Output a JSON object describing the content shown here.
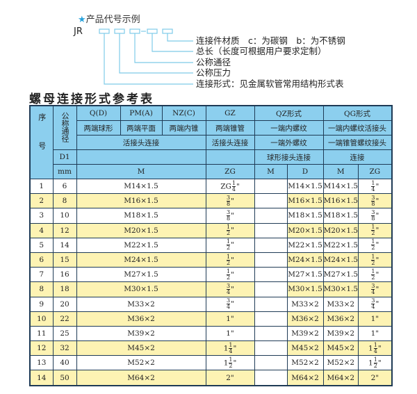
{
  "example": {
    "heading": "产品代号示例",
    "prefix": "JR",
    "dash": "-",
    "labels": [
      "连接件材质　c：为碳钢　b：为不锈钢",
      "总长（长度可根据用户要求定制）",
      "公称通径",
      "公称压力",
      "连接形式：见金属软管常用结构形式表"
    ]
  },
  "title": "螺母连接形式参考表",
  "head": {
    "seq": "序号",
    "dn": "公称通径",
    "d1": "D1",
    "mm": "mm",
    "codes": [
      "Q(D)",
      "PM(A)",
      "NZ(C)",
      "GZ",
      "QZ形式",
      "QG形式"
    ],
    "types": [
      "两端球形",
      "两端平面",
      "两端内锥",
      "两端锥管",
      "一端内螺纹",
      "一端内螺纹活接头"
    ],
    "conn1": "活接头连接",
    "conn2": "活接头连接",
    "conn3": "一端外螺纹",
    "conn4": "一端锥管螺纹接头",
    "conn5": "球形接头连接",
    "conn6": "连接",
    "units": {
      "m1": "M",
      "zg": "ZG",
      "m2": "M",
      "d": "D",
      "m3": "M",
      "zg2": "ZG"
    }
  },
  "rows": [
    {
      "no": "1",
      "dn": "6",
      "m": "M14×1.5",
      "zg": {
        "pre": "ZG",
        "int": "",
        "num": "1",
        "den": "4",
        "unit": "\""
      },
      "qz_m": "",
      "qz_d": "M14×1.5",
      "qg_m": "M14×1.5",
      "qg_zg": {
        "pre": "",
        "int": "",
        "num": "1",
        "den": "4",
        "unit": "\""
      }
    },
    {
      "no": "2",
      "dn": "8",
      "m": "M16×1.5",
      "zg": {
        "pre": "",
        "int": "",
        "num": "3",
        "den": "8",
        "unit": "\""
      },
      "qz_m": "",
      "qz_d": "M16×1.5",
      "qg_m": "M16×1.5",
      "qg_zg": {
        "pre": "",
        "int": "",
        "num": "3",
        "den": "8",
        "unit": "\""
      }
    },
    {
      "no": "3",
      "dn": "10",
      "m": "M18×1.5",
      "zg": {
        "pre": "",
        "int": "",
        "num": "3",
        "den": "8",
        "unit": "\""
      },
      "qz_m": "",
      "qz_d": "M18×1.5",
      "qg_m": "M18×1.5",
      "qg_zg": {
        "pre": "",
        "int": "",
        "num": "3",
        "den": "8",
        "unit": "\""
      }
    },
    {
      "no": "4",
      "dn": "12",
      "m": "M20×1.5",
      "zg": {
        "pre": "",
        "int": "",
        "num": "1",
        "den": "2",
        "unit": "\""
      },
      "qz_m": "",
      "qz_d": "M20×1.5",
      "qg_m": "M20×1.5",
      "qg_zg": {
        "pre": "",
        "int": "",
        "num": "1",
        "den": "2",
        "unit": "\""
      }
    },
    {
      "no": "5",
      "dn": "14",
      "m": "M22×1.5",
      "zg": {
        "pre": "",
        "int": "",
        "num": "1",
        "den": "2",
        "unit": "\""
      },
      "qz_m": "",
      "qz_d": "M22×1.5",
      "qg_m": "M22×1.5",
      "qg_zg": {
        "pre": "",
        "int": "",
        "num": "1",
        "den": "2",
        "unit": "\""
      }
    },
    {
      "no": "6",
      "dn": "15",
      "m": "M24×1.5",
      "zg": {
        "pre": "",
        "int": "",
        "num": "1",
        "den": "2",
        "unit": "\""
      },
      "qz_m": "",
      "qz_d": "M24×1.5",
      "qg_m": "M24×1.5",
      "qg_zg": {
        "pre": "",
        "int": "",
        "num": "1",
        "den": "2",
        "unit": "\""
      }
    },
    {
      "no": "7",
      "dn": "16",
      "m": "M27×1.5",
      "zg": {
        "pre": "",
        "int": "",
        "num": "1",
        "den": "2",
        "unit": "\""
      },
      "qz_m": "",
      "qz_d": "M27×1.5",
      "qg_m": "M27×1.5",
      "qg_zg": {
        "pre": "",
        "int": "",
        "num": "1",
        "den": "2",
        "unit": "\""
      }
    },
    {
      "no": "8",
      "dn": "18",
      "m": "M30×1.5",
      "zg": {
        "pre": "",
        "int": "",
        "num": "3",
        "den": "4",
        "unit": "\""
      },
      "qz_m": "",
      "qz_d": "M30×1.5",
      "qg_m": "M30×1.5",
      "qg_zg": {
        "pre": "",
        "int": "",
        "num": "3",
        "den": "4",
        "unit": "\""
      }
    },
    {
      "no": "9",
      "dn": "20",
      "m": "M33×2",
      "zg": {
        "pre": "",
        "int": "",
        "num": "3",
        "den": "4",
        "unit": "\""
      },
      "qz_m": "",
      "qz_d": "M33×2",
      "qg_m": "M33×2",
      "qg_zg": {
        "pre": "",
        "int": "",
        "num": "3",
        "den": "4",
        "unit": "\""
      }
    },
    {
      "no": "10",
      "dn": "22",
      "m": "M36×2",
      "zg": {
        "pre": "",
        "int": "1",
        "num": "",
        "den": "",
        "unit": "\""
      },
      "qz_m": "",
      "qz_d": "M36×2",
      "qg_m": "M36×2",
      "qg_zg": {
        "pre": "",
        "int": "1",
        "num": "",
        "den": "",
        "unit": "\""
      }
    },
    {
      "no": "11",
      "dn": "25",
      "m": "M39×2",
      "zg": {
        "pre": "",
        "int": "1",
        "num": "",
        "den": "",
        "unit": "\""
      },
      "qz_m": "",
      "qz_d": "M39×2",
      "qg_m": "M39×2",
      "qg_zg": {
        "pre": "",
        "int": "1",
        "num": "",
        "den": "",
        "unit": "\""
      }
    },
    {
      "no": "12",
      "dn": "32",
      "m": "M45×2",
      "zg": {
        "pre": "",
        "int": "1",
        "num": "1",
        "den": "4",
        "unit": "\""
      },
      "qz_m": "",
      "qz_d": "M45×2",
      "qg_m": "M45×2",
      "qg_zg": {
        "pre": "",
        "int": "1",
        "num": "1",
        "den": "4",
        "unit": "\""
      }
    },
    {
      "no": "13",
      "dn": "40",
      "m": "M52×2",
      "zg": {
        "pre": "",
        "int": "1",
        "num": "1",
        "den": "2",
        "unit": "\""
      },
      "qz_m": "",
      "qz_d": "M52×2",
      "qg_m": "M52×2",
      "qg_zg": {
        "pre": "",
        "int": "1",
        "num": "1",
        "den": "2",
        "unit": "\""
      }
    },
    {
      "no": "14",
      "dn": "50",
      "m": "M64×2",
      "zg": {
        "pre": "",
        "int": "2",
        "num": "",
        "den": "",
        "unit": "\""
      },
      "qz_m": "",
      "qz_d": "M64×2",
      "qg_m": "M64×2",
      "qg_zg": {
        "pre": "",
        "int": "2",
        "num": "",
        "den": "",
        "unit": "\""
      }
    }
  ],
  "colors": {
    "header": "#8ccfee",
    "stripe": "#fdf3b3",
    "line": "#7ecbe8",
    "star": "#29a3dc"
  }
}
